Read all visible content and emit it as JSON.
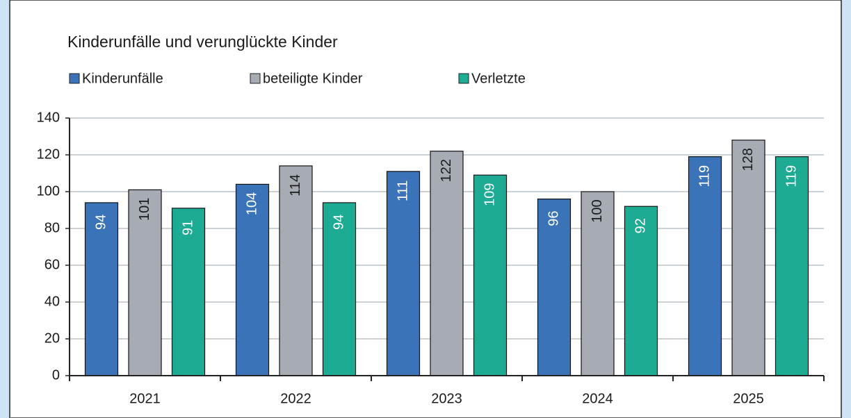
{
  "chart_data": {
    "type": "bar",
    "title": "Kinderunfälle und verunglückte Kinder",
    "categories": [
      "2021",
      "2022",
      "2023",
      "2024",
      "2025"
    ],
    "series": [
      {
        "name": "Kinderunfälle",
        "color": "#3a73b8",
        "values": [
          94,
          104,
          111,
          96,
          119
        ]
      },
      {
        "name": "beteiligte Kinder",
        "color": "#a7acb4",
        "values": [
          101,
          114,
          122,
          100,
          128
        ]
      },
      {
        "name": "Verletzte",
        "color": "#1eab94",
        "values": [
          91,
          94,
          109,
          92,
          119
        ]
      }
    ],
    "ylim": [
      0,
      140
    ],
    "yticks": [
      0,
      20,
      40,
      60,
      80,
      100,
      120,
      140
    ],
    "grid": true,
    "legend": "top"
  }
}
